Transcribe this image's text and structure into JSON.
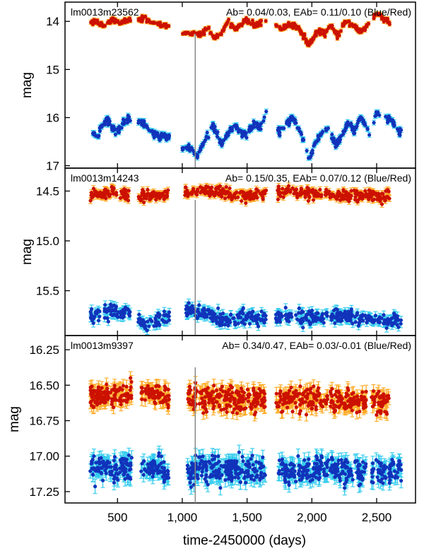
{
  "chart_data": [
    {
      "type": "scatter",
      "star_id": "lm0013m23562",
      "annotation": "Ab= 0.04/0.03, EAb= 0.11/0.10  (Blue/Red)",
      "ylabel": "mag",
      "ylim": [
        13.6,
        17.05
      ],
      "y_inverted": true,
      "yticks": [
        14,
        15,
        16,
        17
      ],
      "ytick_labels": [
        "14",
        "15",
        "16",
        "17"
      ],
      "xlim": [
        95,
        2800
      ],
      "vline_x": 1100,
      "gap_ranges": [
        [
          600,
          660
        ],
        [
          900,
          1000
        ],
        [
          1650,
          1720
        ],
        [
          2450,
          2470
        ]
      ],
      "series": [
        {
          "color": "#cc1100",
          "err_color": "#ffaa22",
          "knots": [
            [
              290,
              14.05
            ],
            [
              340,
              13.98
            ],
            [
              400,
              14.1
            ],
            [
              460,
              13.97
            ],
            [
              520,
              14.05
            ],
            [
              590,
              13.95
            ],
            [
              650,
              13.96
            ],
            [
              720,
              13.95
            ],
            [
              800,
              14.05
            ],
            [
              900,
              14.12
            ],
            [
              1050,
              14.25
            ],
            [
              1100,
              14.27
            ],
            [
              1150,
              14.25
            ],
            [
              1200,
              14.15
            ],
            [
              1240,
              14.35
            ],
            [
              1300,
              14.25
            ],
            [
              1350,
              14.0
            ],
            [
              1420,
              14.15
            ],
            [
              1500,
              13.98
            ],
            [
              1560,
              14.1
            ],
            [
              1620,
              14.0
            ],
            [
              1680,
              13.95
            ],
            [
              1760,
              14.18
            ],
            [
              1820,
              14.05
            ],
            [
              1900,
              14.15
            ],
            [
              1980,
              14.5
            ],
            [
              2050,
              14.2
            ],
            [
              2100,
              14.25
            ],
            [
              2150,
              14.1
            ],
            [
              2200,
              14.3
            ],
            [
              2260,
              14.0
            ],
            [
              2320,
              14.1
            ],
            [
              2380,
              14.2
            ],
            [
              2450,
              14.05
            ],
            [
              2500,
              13.82
            ],
            [
              2560,
              13.95
            ],
            [
              2610,
              14.0
            ]
          ],
          "noise": 0.04,
          "err": 0.04,
          "dots_per_100d": 19
        },
        {
          "color": "#1133bb",
          "err_color": "#33ccee",
          "knots": [
            [
              290,
              16.3
            ],
            [
              340,
              16.4
            ],
            [
              370,
              16.2
            ],
            [
              420,
              16.05
            ],
            [
              460,
              16.2
            ],
            [
              500,
              16.3
            ],
            [
              540,
              16.1
            ],
            [
              590,
              16.0
            ],
            [
              700,
              16.1
            ],
            [
              760,
              16.3
            ],
            [
              820,
              16.4
            ],
            [
              900,
              16.4
            ],
            [
              1000,
              16.6
            ],
            [
              1080,
              16.65
            ],
            [
              1110,
              16.8
            ],
            [
              1160,
              16.55
            ],
            [
              1200,
              16.35
            ],
            [
              1240,
              16.15
            ],
            [
              1300,
              16.55
            ],
            [
              1360,
              16.3
            ],
            [
              1400,
              16.15
            ],
            [
              1450,
              16.3
            ],
            [
              1500,
              16.35
            ],
            [
              1550,
              16.1
            ],
            [
              1600,
              16.2
            ],
            [
              1650,
              15.9
            ],
            [
              1720,
              16.35
            ],
            [
              1780,
              16.2
            ],
            [
              1850,
              16.0
            ],
            [
              1920,
              16.35
            ],
            [
              1980,
              16.85
            ],
            [
              2030,
              16.5
            ],
            [
              2080,
              16.3
            ],
            [
              2140,
              16.25
            ],
            [
              2180,
              16.6
            ],
            [
              2240,
              16.35
            ],
            [
              2280,
              16.1
            ],
            [
              2330,
              16.3
            ],
            [
              2380,
              15.95
            ],
            [
              2420,
              16.2
            ],
            [
              2460,
              16.4
            ],
            [
              2500,
              15.85
            ],
            [
              2550,
              16.05
            ],
            [
              2600,
              16.0
            ],
            [
              2650,
              16.2
            ],
            [
              2690,
              16.35
            ]
          ],
          "noise": 0.05,
          "err": 0.05,
          "dots_per_100d": 19
        }
      ]
    },
    {
      "type": "scatter",
      "star_id": "lm0013m14243",
      "annotation": "Ab= 0.15/0.35, EAb= 0.07/0.12  (Blue/Red)",
      "ylabel": "mag",
      "ylim": [
        14.27,
        15.95
      ],
      "y_inverted": true,
      "yticks": [
        14.5,
        15.0,
        15.5
      ],
      "ytick_labels": [
        "14.5",
        "15.0",
        "15.5"
      ],
      "xlim": [
        95,
        2800
      ],
      "vline_x": 1100,
      "gap_ranges": [
        [
          600,
          660
        ],
        [
          900,
          1020
        ],
        [
          1650,
          1720
        ]
      ],
      "series": [
        {
          "color": "#cc1100",
          "err_color": "#ffaa22",
          "knots": [
            [
              290,
              14.55
            ],
            [
              450,
              14.5
            ],
            [
              600,
              14.55
            ],
            [
              900,
              14.55
            ],
            [
              1100,
              14.5
            ],
            [
              1500,
              14.55
            ],
            [
              1800,
              14.5
            ],
            [
              2200,
              14.55
            ],
            [
              2600,
              14.55
            ]
          ],
          "noise": 0.04,
          "err": 0.03,
          "dots_per_100d": 24
        },
        {
          "color": "#1133bb",
          "err_color": "#33ccee",
          "knots": [
            [
              290,
              15.75
            ],
            [
              450,
              15.7
            ],
            [
              600,
              15.72
            ],
            [
              700,
              15.85
            ],
            [
              800,
              15.8
            ],
            [
              900,
              15.75
            ],
            [
              1050,
              15.68
            ],
            [
              1150,
              15.72
            ],
            [
              1300,
              15.8
            ],
            [
              1400,
              15.78
            ],
            [
              1500,
              15.75
            ],
            [
              1600,
              15.8
            ],
            [
              1800,
              15.75
            ],
            [
              2000,
              15.78
            ],
            [
              2200,
              15.75
            ],
            [
              2400,
              15.78
            ],
            [
              2600,
              15.8
            ],
            [
              2690,
              15.78
            ]
          ],
          "noise": 0.05,
          "err": 0.04,
          "dots_per_100d": 24
        }
      ]
    },
    {
      "type": "scatter",
      "star_id": "lm0013m9397",
      "annotation": "Ab= 0.34/0.47, EAb= 0.03/-0.01  (Blue/Red)",
      "ylabel": "mag",
      "ylim": [
        16.15,
        17.33
      ],
      "y_inverted": true,
      "yticks": [
        16.25,
        16.5,
        16.75,
        17.0,
        17.25
      ],
      "ytick_labels": [
        "16.25",
        "16.50",
        "16.75",
        "17.00",
        "17.25"
      ],
      "xlim": [
        95,
        2800
      ],
      "vline_x": 1100,
      "gap_ranges": [
        [
          610,
          680
        ],
        [
          900,
          1040
        ],
        [
          1640,
          1720
        ],
        [
          2420,
          2460
        ]
      ],
      "series": [
        {
          "color": "#cc1100",
          "err_color": "#ffaa22",
          "knots": [
            [
              290,
              16.58
            ],
            [
              600,
              16.56
            ],
            [
              900,
              16.58
            ],
            [
              1300,
              16.6
            ],
            [
              1700,
              16.6
            ],
            [
              2100,
              16.6
            ],
            [
              2600,
              16.62
            ]
          ],
          "noise": 0.06,
          "err": 0.045,
          "dots_per_100d": 34
        },
        {
          "color": "#1133bb",
          "err_color": "#33ccee",
          "knots": [
            [
              290,
              17.1
            ],
            [
              600,
              17.08
            ],
            [
              900,
              17.1
            ],
            [
              1300,
              17.1
            ],
            [
              1700,
              17.1
            ],
            [
              2100,
              17.1
            ],
            [
              2690,
              17.1
            ]
          ],
          "noise": 0.065,
          "err": 0.05,
          "dots_per_100d": 34
        }
      ]
    }
  ],
  "x_axis": {
    "ticks": [
      500,
      1000,
      1500,
      2000,
      2500
    ],
    "tick_labels": [
      "500",
      "1,000",
      "1,500",
      "2,000",
      "2,500"
    ],
    "label": "time-2450000 (days)"
  }
}
